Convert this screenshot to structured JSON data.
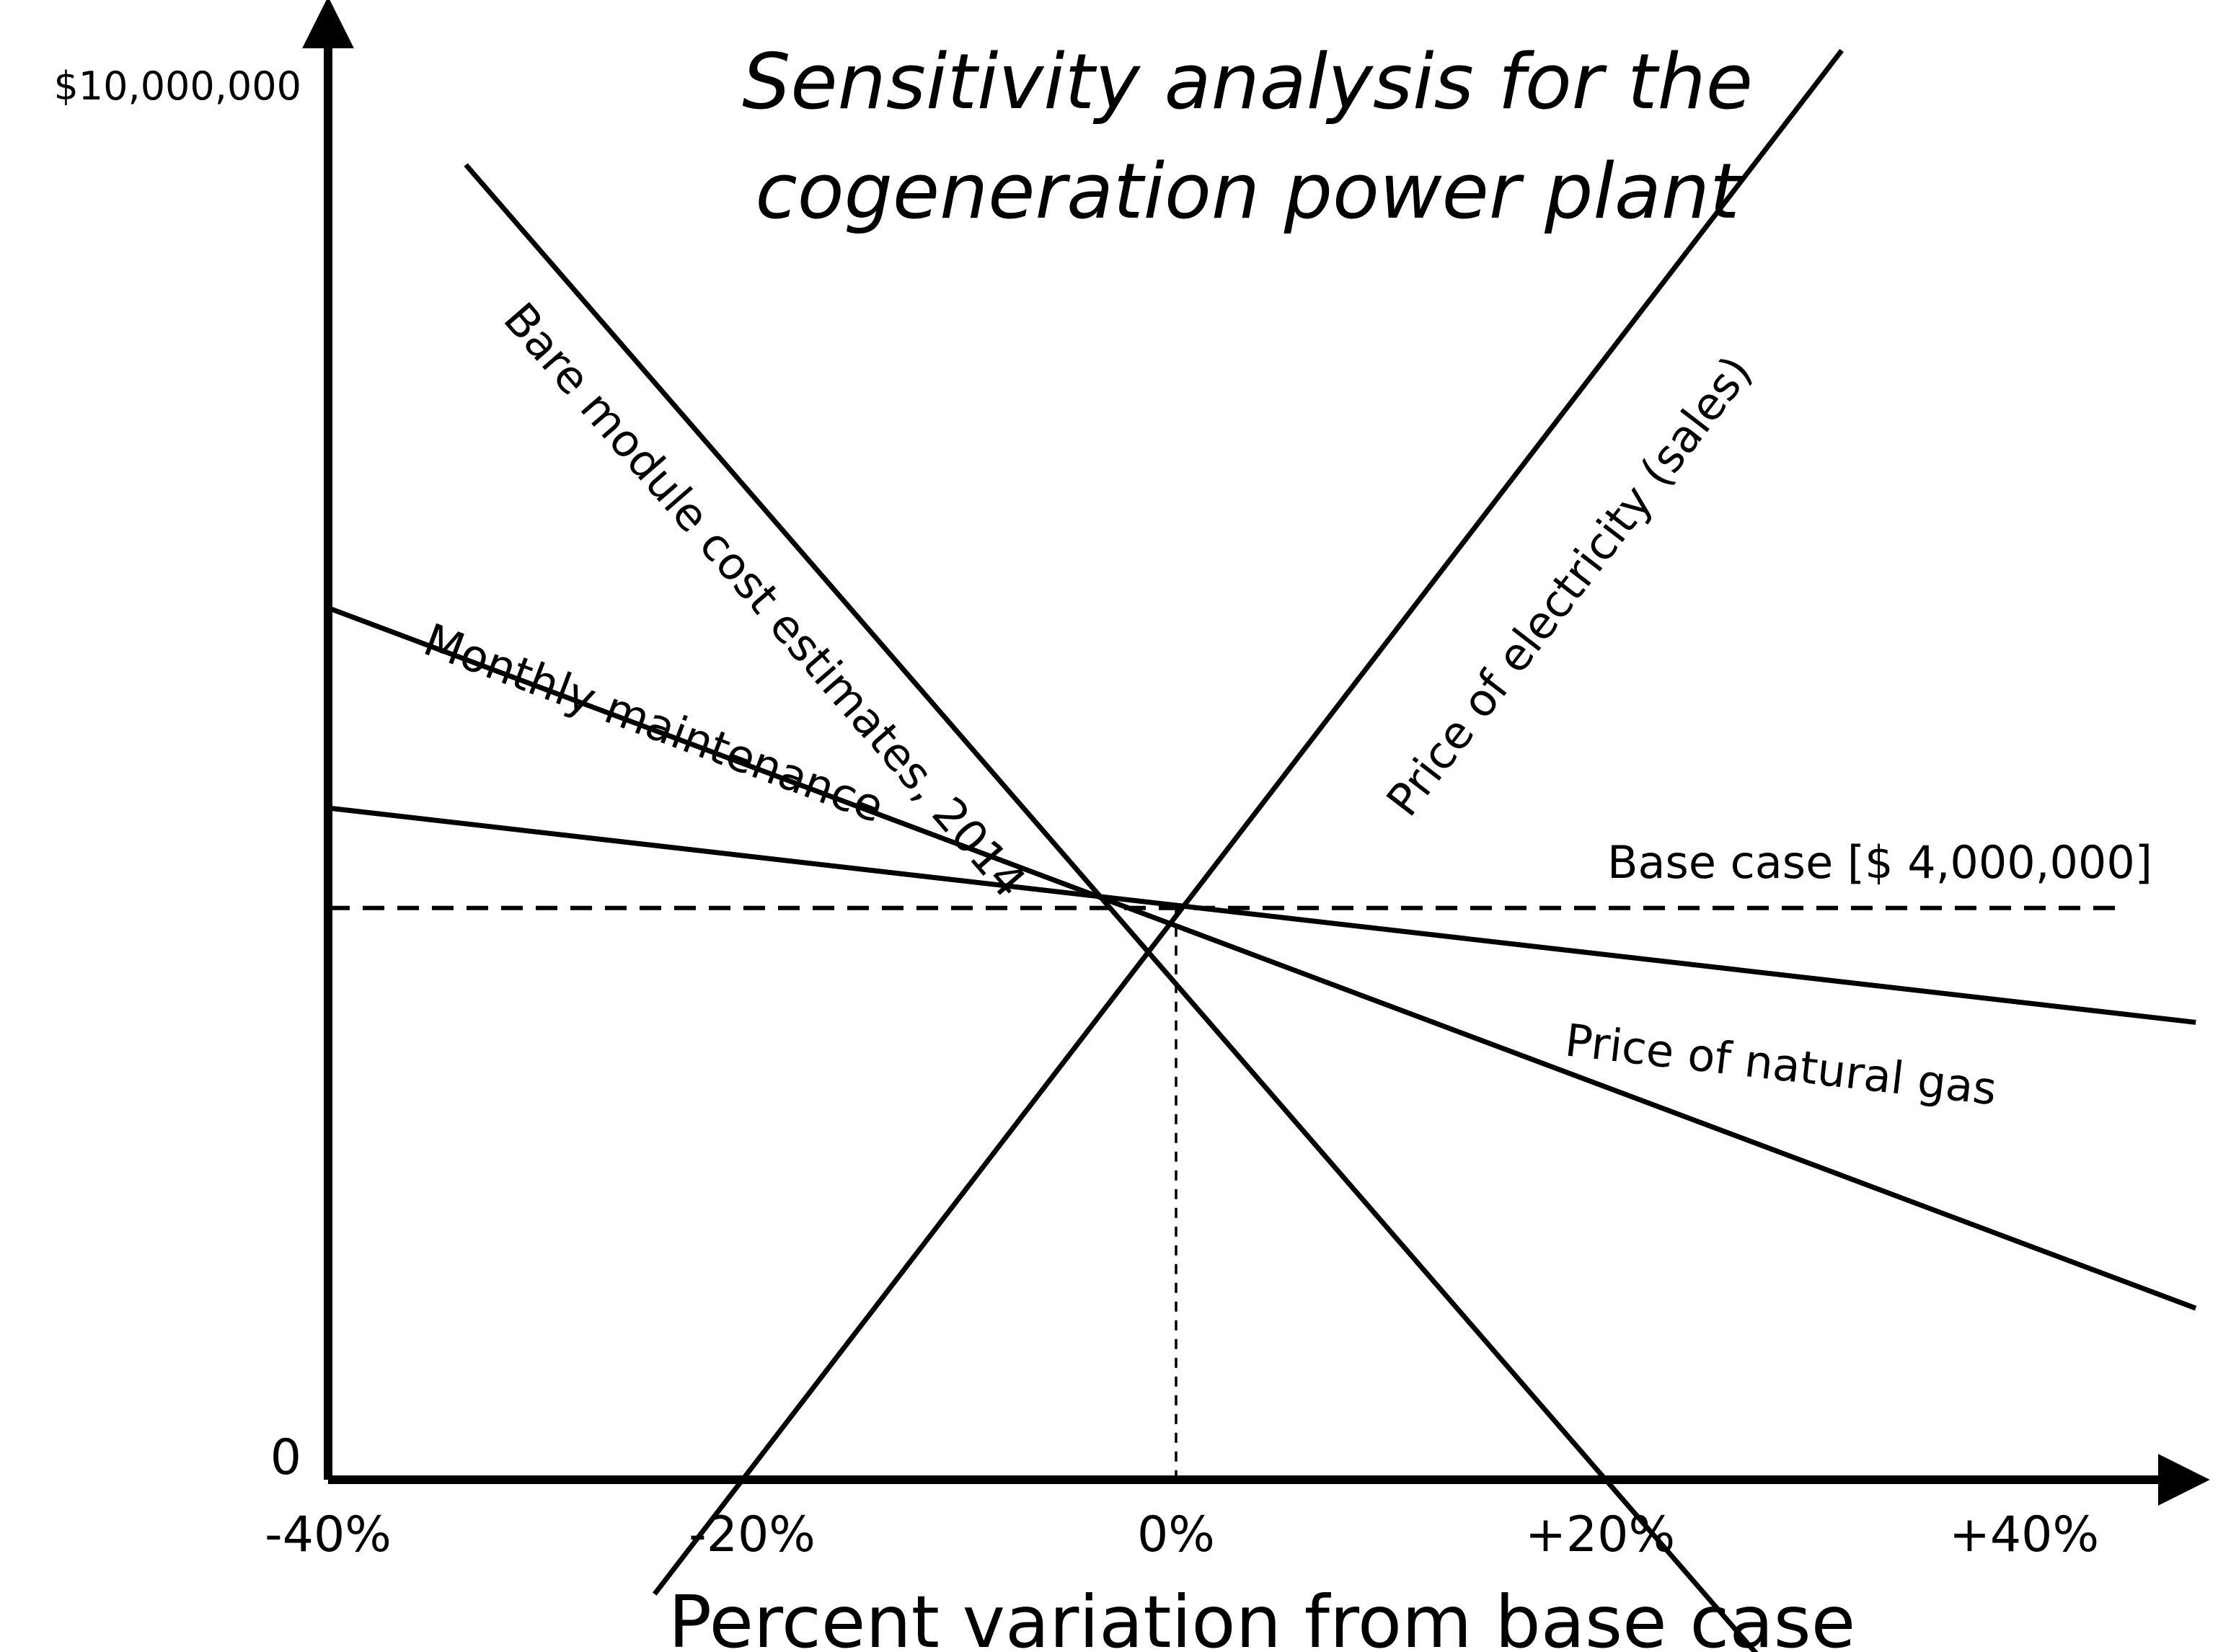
{
  "chart_data": {
    "type": "line",
    "title_lines": [
      "Sensitivity analysis for the",
      "cogeneration power plant"
    ],
    "xlabel": "Percent variation from base case",
    "ylabel": "",
    "x_ticks": [
      {
        "value": -40,
        "label": "-40%"
      },
      {
        "value": -20,
        "label": "-20%"
      },
      {
        "value": 0,
        "label": "0%"
      },
      {
        "value": 20,
        "label": "+20%"
      },
      {
        "value": 40,
        "label": "+40%"
      }
    ],
    "y_ticks": [
      {
        "value": 0,
        "label": "0"
      },
      {
        "value": 10000000,
        "label": "$10,000,000"
      }
    ],
    "xlim": [
      -40,
      52
    ],
    "ylim": [
      0,
      10000000
    ],
    "grid": false,
    "legend": "none",
    "base_case": {
      "label": "Base case [$ 4,000,000]",
      "x": 0,
      "value": 4000000
    },
    "series": [
      {
        "name": "Price of electricity (sales)",
        "x": [
          -24.6,
          31.4
        ],
        "y": [
          -800000,
          10000000
        ]
      },
      {
        "name": "Bare module cost estimates, 2014",
        "x": [
          -33.5,
          30.2
        ],
        "y": [
          9200000,
          -1700000
        ]
      },
      {
        "name": "Monthly maintenance",
        "x": [
          -40,
          48.1
        ],
        "y": [
          6100000,
          1200000
        ]
      },
      {
        "name": "Price of natural gas",
        "x": [
          -40,
          48.1
        ],
        "y": [
          4700000,
          3200000
        ]
      }
    ]
  }
}
